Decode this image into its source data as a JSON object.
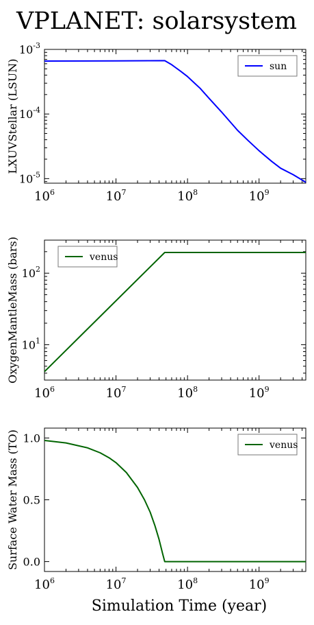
{
  "figure": {
    "title": "VPLANET: solarsystem",
    "xlabel": "Simulation Time (year)"
  },
  "chart_data": [
    {
      "type": "line",
      "ylabel": "LXUVStellar (LSUN)",
      "xscale": "log",
      "yscale": "log",
      "xlim": [
        1000000,
        4500000000
      ],
      "ylim": [
        8.5e-06,
        0.001
      ],
      "xticks": [
        {
          "base": "10",
          "exp": "6"
        },
        {
          "base": "10",
          "exp": "7"
        },
        {
          "base": "10",
          "exp": "8"
        },
        {
          "base": "10",
          "exp": "9"
        }
      ],
      "yticks": [
        {
          "base": "10",
          "exp": "-3"
        },
        {
          "base": "10",
          "exp": "-4"
        },
        {
          "base": "10",
          "exp": "-5"
        }
      ],
      "legend": "top-right",
      "series": [
        {
          "name": "sun",
          "color": "#0000ff",
          "x": [
            1000000,
            10000000,
            48000000,
            60000000,
            80000000,
            100000000,
            150000000,
            200000000,
            300000000,
            500000000,
            700000000,
            1000000000,
            1500000000,
            2000000000,
            3000000000,
            4500000000
          ],
          "y": [
            0.00066,
            0.000665,
            0.00067,
            0.00058,
            0.00046,
            0.00038,
            0.00025,
            0.000175,
            0.000107,
            5.6e-05,
            3.9e-05,
            2.7e-05,
            1.85e-05,
            1.45e-05,
            1.15e-05,
            8.8e-06
          ]
        }
      ]
    },
    {
      "type": "line",
      "ylabel": "OxygenMantleMass (bars)",
      "xscale": "log",
      "yscale": "log",
      "xlim": [
        1000000,
        4500000000
      ],
      "ylim": [
        3.2,
        290
      ],
      "xticks": [
        {
          "base": "10",
          "exp": "6"
        },
        {
          "base": "10",
          "exp": "7"
        },
        {
          "base": "10",
          "exp": "8"
        },
        {
          "base": "10",
          "exp": "9"
        }
      ],
      "yticks": [
        {
          "base": "10",
          "exp": "2"
        },
        {
          "base": "10",
          "exp": "1"
        }
      ],
      "legend": "top-left",
      "series": [
        {
          "name": "venus",
          "color": "#006400",
          "x": [
            1000000,
            48000000,
            4500000000
          ],
          "y": [
            4.2,
            195,
            195
          ]
        }
      ]
    },
    {
      "type": "line",
      "ylabel": "Surface Water Mass (TO)",
      "xscale": "log",
      "yscale": "linear",
      "xlim": [
        1000000,
        4500000000
      ],
      "ylim": [
        -0.08,
        1.08
      ],
      "xticks": [
        {
          "base": "10",
          "exp": "6"
        },
        {
          "base": "10",
          "exp": "7"
        },
        {
          "base": "10",
          "exp": "8"
        },
        {
          "base": "10",
          "exp": "9"
        }
      ],
      "yticks": [
        {
          "value": 1.0,
          "label": "1.0"
        },
        {
          "value": 0.5,
          "label": "0.5"
        },
        {
          "value": 0.0,
          "label": "0.0"
        }
      ],
      "legend": "top-right",
      "series": [
        {
          "name": "venus",
          "color": "#006400",
          "x": [
            1000000,
            2000000,
            4000000,
            6000000,
            8000000,
            10000000,
            14000000,
            20000000,
            25000000,
            30000000,
            35000000,
            40000000,
            45000000,
            48000000,
            4500000000
          ],
          "y": [
            0.98,
            0.96,
            0.92,
            0.88,
            0.84,
            0.8,
            0.72,
            0.6,
            0.5,
            0.4,
            0.29,
            0.18,
            0.06,
            0.0,
            0.0
          ]
        }
      ]
    }
  ]
}
